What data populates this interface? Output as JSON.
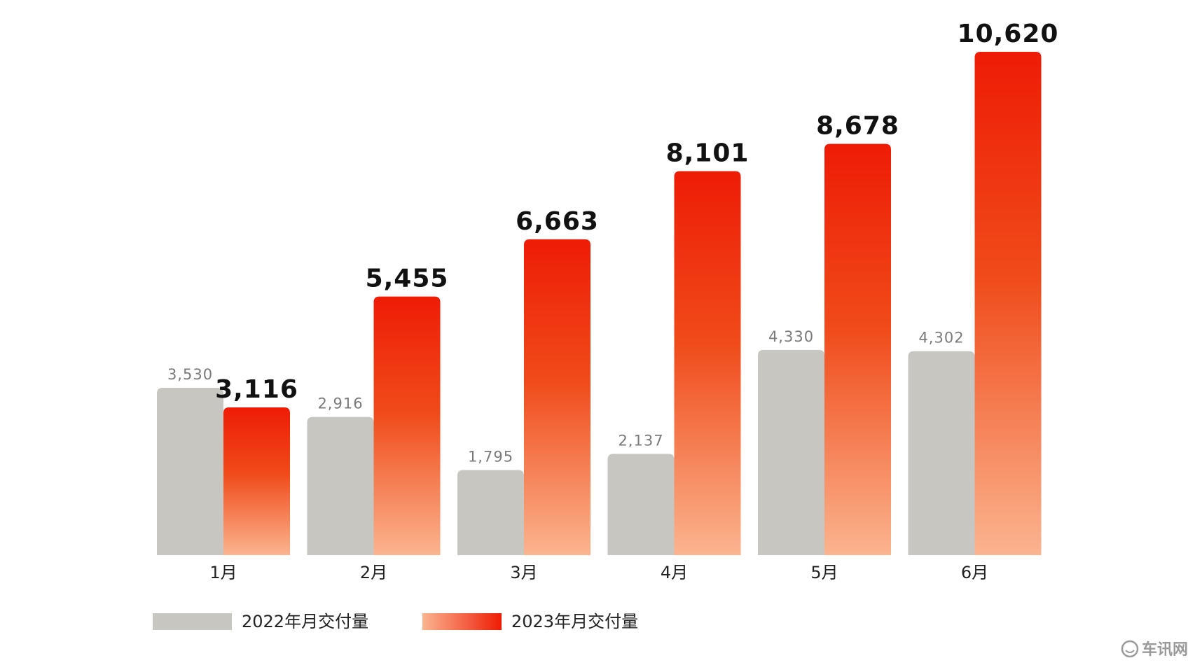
{
  "chart_data": {
    "type": "bar",
    "categories": [
      "1月",
      "2月",
      "3月",
      "4月",
      "5月",
      "6月"
    ],
    "series": [
      {
        "name": "2022年月交付量",
        "values": [
          3530,
          2916,
          1795,
          2137,
          4330,
          4302
        ],
        "labels": [
          "3,530",
          "2,916",
          "1,795",
          "2,137",
          "4,330",
          "4,302"
        ],
        "color": "#c8c6c1"
      },
      {
        "name": "2023年月交付量",
        "values": [
          3116,
          5455,
          6663,
          8101,
          8678,
          10620
        ],
        "labels": [
          "3,116",
          "5,455",
          "6,663",
          "8,101",
          "8,678",
          "10,620"
        ],
        "color_top": "#ee1c05",
        "color_bottom": "#fbb48f"
      }
    ],
    "ylim": [
      0,
      10620
    ],
    "grid": false,
    "legend": "bottom-left"
  },
  "watermark": {
    "text": "车讯网",
    "icon": "smiley-logo-icon"
  }
}
